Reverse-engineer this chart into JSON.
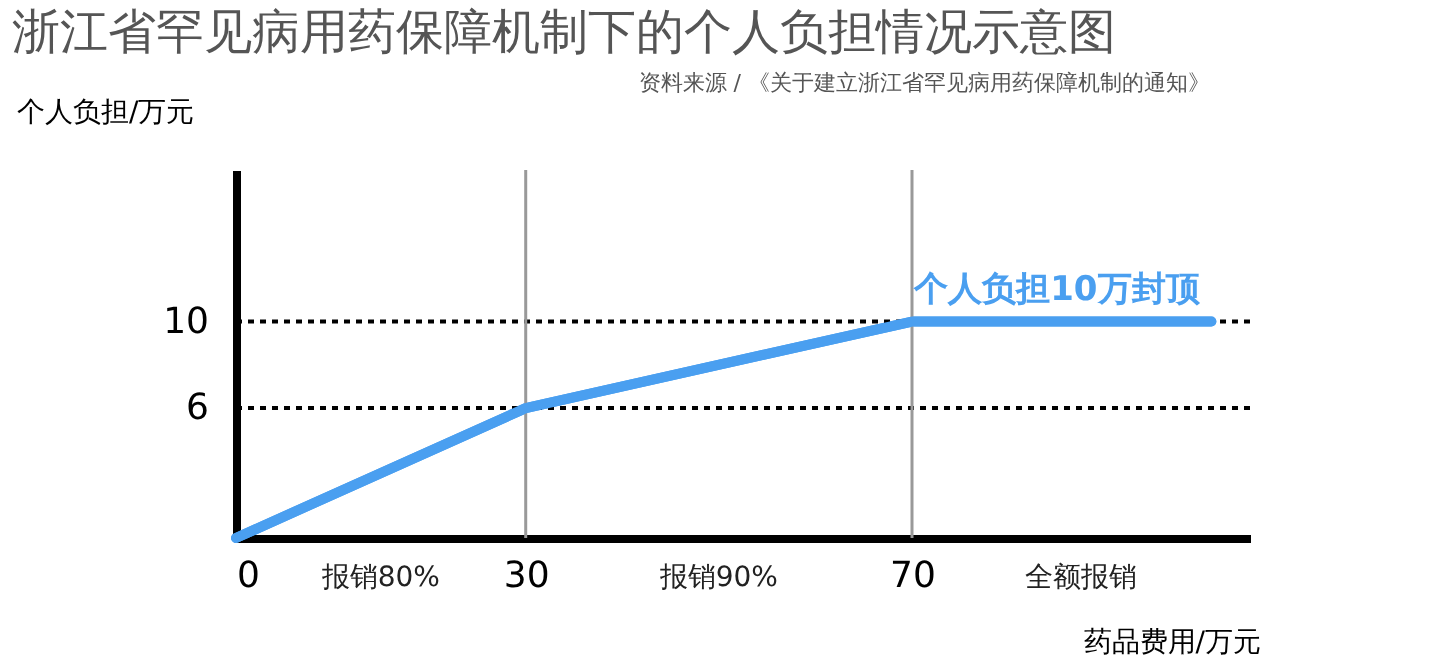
{
  "chart_data": {
    "type": "line",
    "title": "浙江省罕见病用药保障机制下的个人负担情况示意图",
    "subtitle": "资料来源 / 《关于建立浙江省罕见病用药保障机制的通知》",
    "xlabel": "药品费用/万元",
    "ylabel": "个人负担/万元",
    "series": [
      {
        "x": [
          0,
          30,
          70,
          101
        ],
        "values": [
          0,
          6,
          10,
          10
        ],
        "color": "#4a9ff0"
      }
    ],
    "xlim": [
      0,
      105
    ],
    "xticks": [
      0,
      30,
      70
    ],
    "ylim": [
      0,
      17
    ],
    "yticks": [
      6,
      10
    ],
    "ref_lines": [
      {
        "axis": "y",
        "value": 10,
        "line_style": "dotted",
        "color": "#000000"
      },
      {
        "axis": "y",
        "value": 6,
        "line_style": "dotted",
        "color": "#000000"
      },
      {
        "axis": "x",
        "value": 30,
        "color": "#999999"
      },
      {
        "axis": "x",
        "value": 70,
        "color": "#999999"
      }
    ],
    "annotations": [
      {
        "text": "个人负担10万封顶",
        "x": 85,
        "y": 10
      },
      "报销80%",
      "报销90%",
      "全额报销"
    ],
    "grid": false,
    "marker": "none",
    "line_style": "solid"
  }
}
